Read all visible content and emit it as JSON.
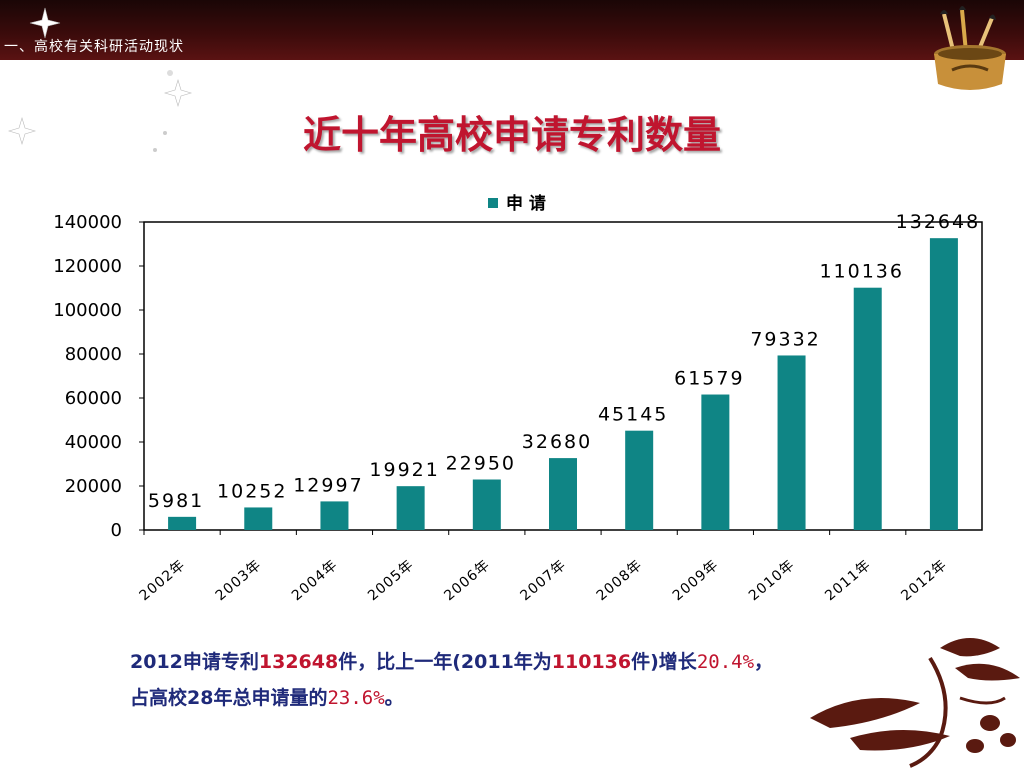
{
  "header": {
    "section_label": "一、高校有关科研活动现状"
  },
  "title": "近十年高校申请专利数量",
  "colors": {
    "bar": "#0f8585",
    "title": "#c0152f",
    "summary_text": "#1f2a7a",
    "highlight": "#c0152f",
    "header_bg": "#3a0b0b"
  },
  "chart_data": {
    "type": "bar",
    "categories": [
      "2002年",
      "2003年",
      "2004年",
      "2005年",
      "2006年",
      "2007年",
      "2008年",
      "2009年",
      "2010年",
      "2011年",
      "2012年"
    ],
    "series": [
      {
        "name": "申 请",
        "values": [
          5981,
          10252,
          12997,
          19921,
          22950,
          32680,
          45145,
          61579,
          79332,
          110136,
          132648
        ]
      }
    ],
    "ylim": [
      0,
      140000
    ],
    "yticks": [
      0,
      20000,
      40000,
      60000,
      80000,
      100000,
      120000,
      140000
    ],
    "legend_position": "top-center",
    "grid": false
  },
  "summary": {
    "line1_a": "2012申请专利",
    "line1_b": "132648",
    "line1_c": "件，比上一年(2011年为",
    "line1_d": "110136",
    "line1_e": "件)增长",
    "line1_f": "20.4%",
    "line1_g": "，",
    "line2_a": "占高校28年总申请量的",
    "line2_b": "23.6%",
    "line2_c": "。"
  }
}
